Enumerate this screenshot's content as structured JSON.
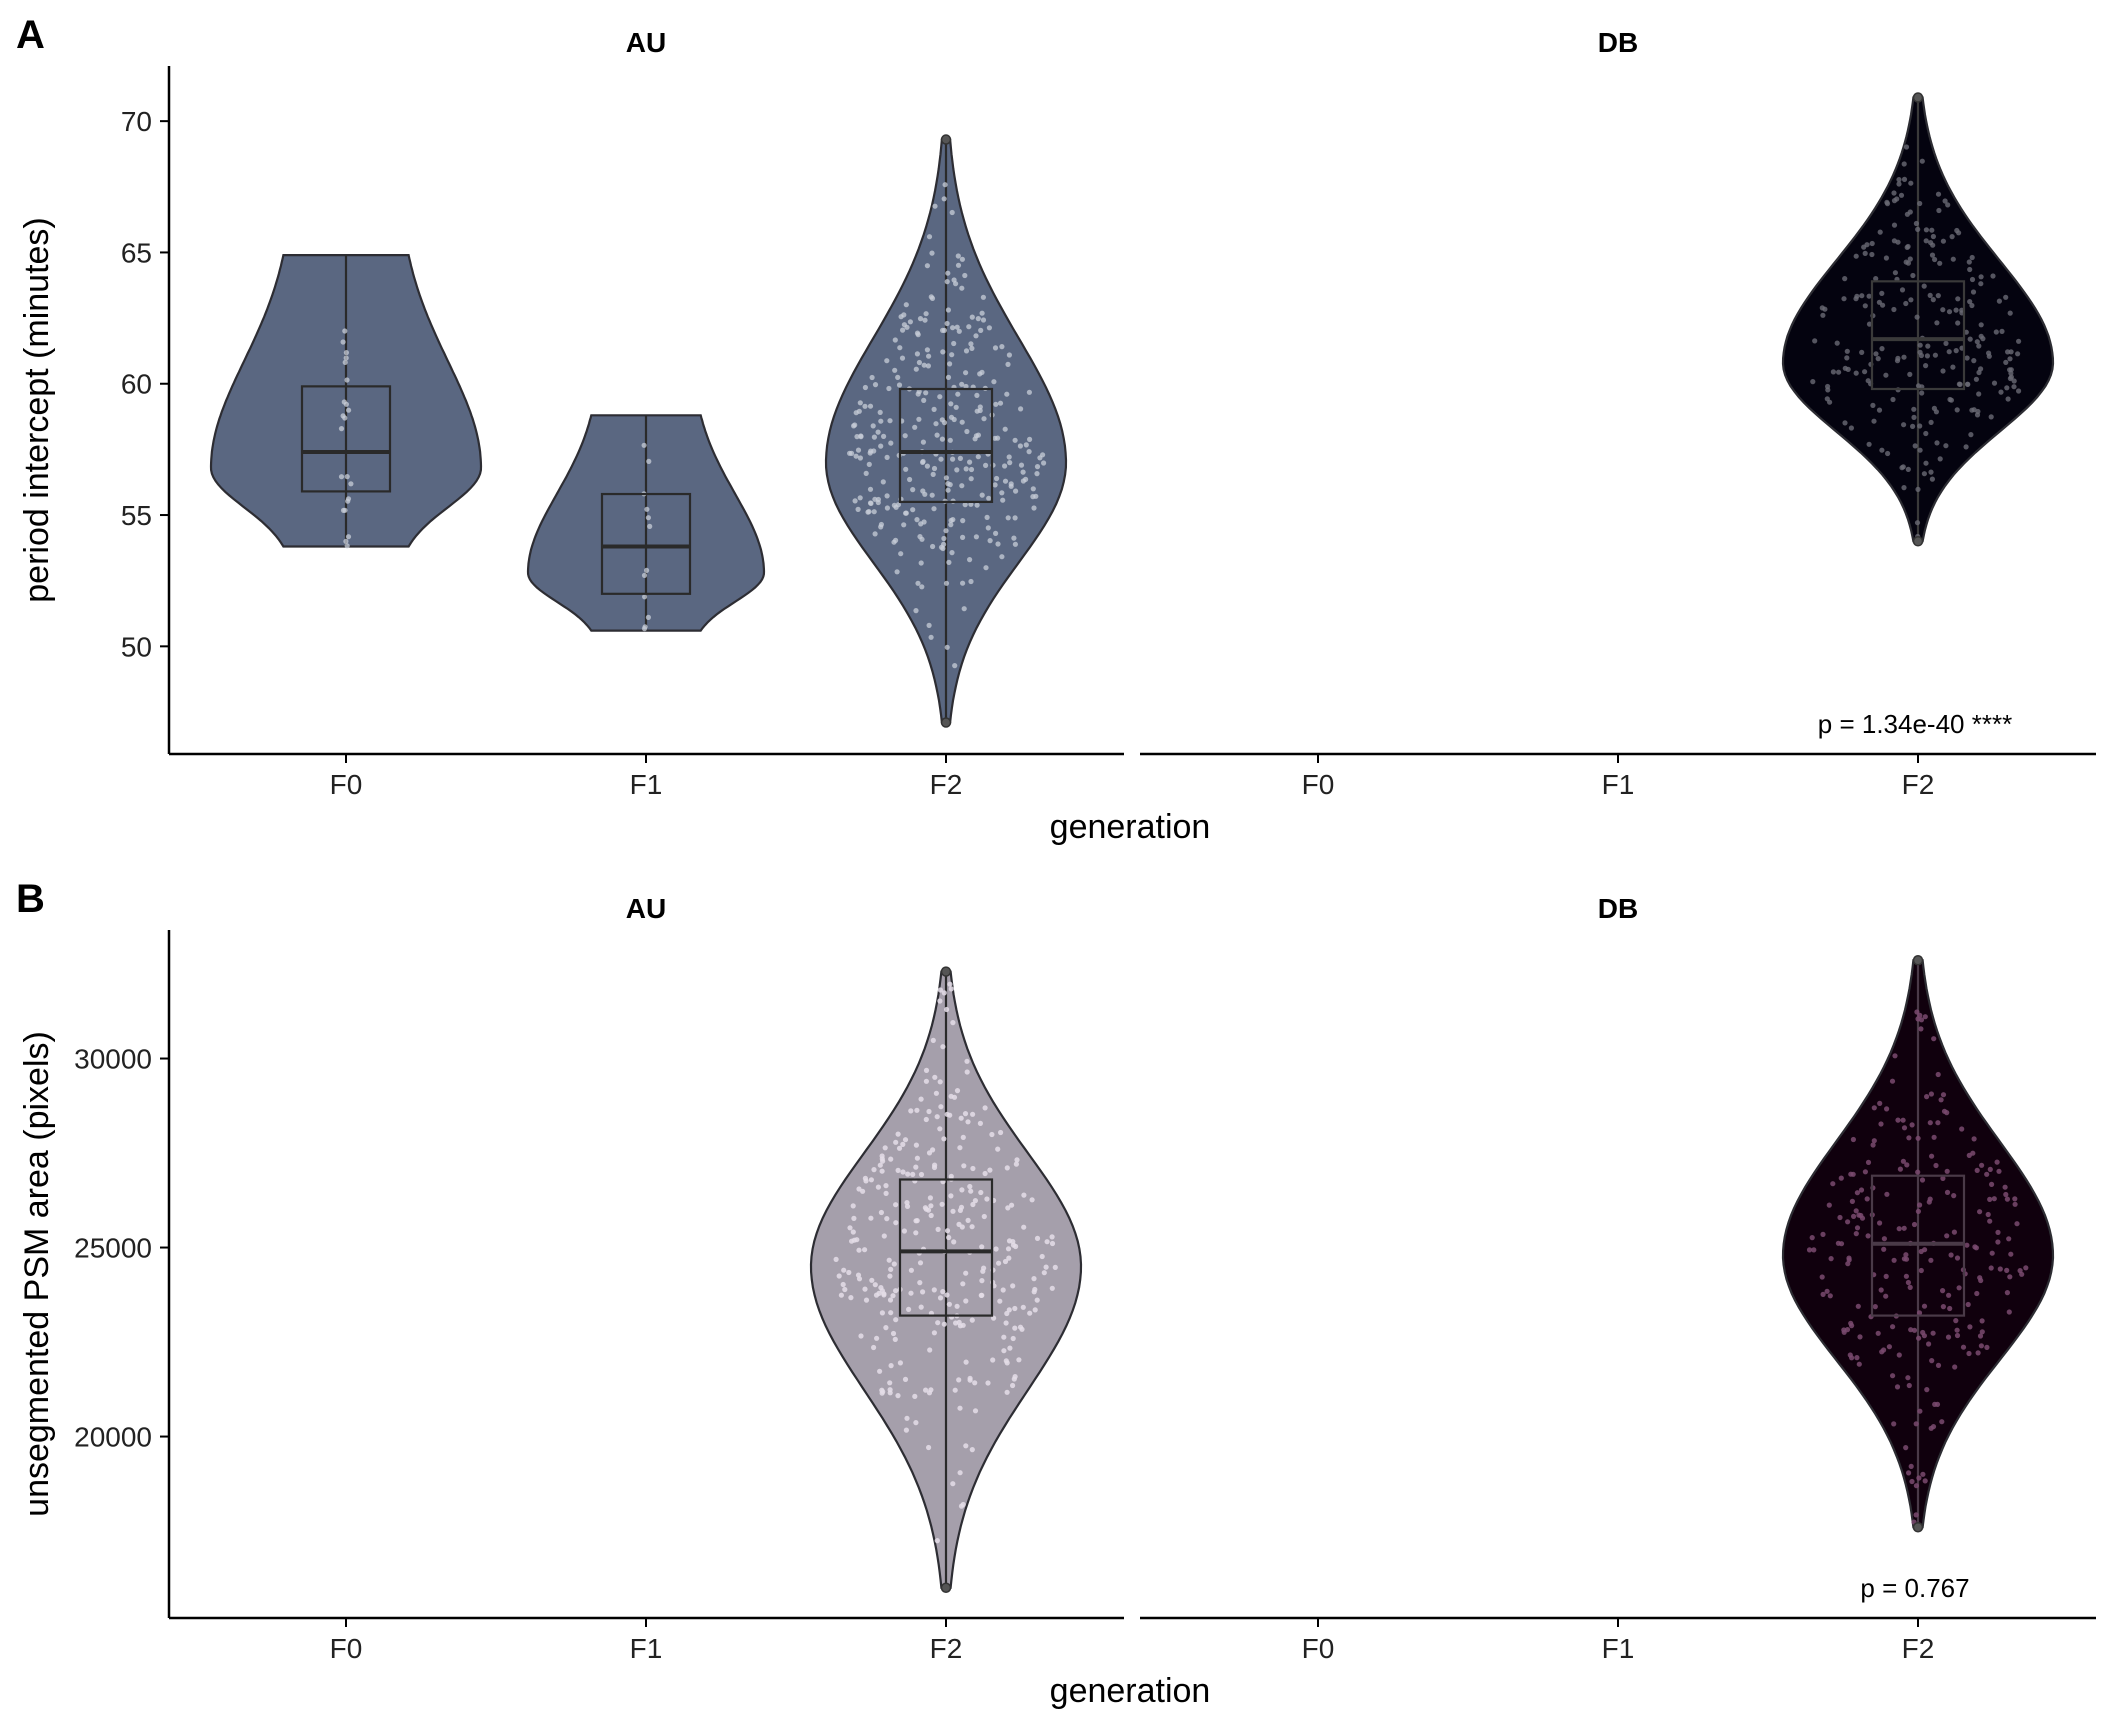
{
  "colors": {
    "au_period": "#5a6781",
    "db_period": "#04030f",
    "au_psm": "#a59fab",
    "db_psm": "#10000d",
    "outline": "#333333",
    "dots_light": "#c8cdd8",
    "dots_db_period": "#6a6a74",
    "dots_db_psm": "#7a4a70"
  },
  "chart_data": [
    {
      "panel": "A",
      "type": "violin",
      "facets": [
        "AU",
        "DB"
      ],
      "categories": [
        "F0",
        "F1",
        "F2"
      ],
      "xlabel": "generation",
      "ylabel": "period intercept (minutes)",
      "yticks": [
        50,
        55,
        60,
        65,
        70
      ],
      "ytick_labels": [
        "50",
        "55",
        "60",
        "65",
        "70"
      ],
      "ylim": [
        45.9,
        72.1
      ],
      "annotation": "p = 1.34e-40 ****",
      "series": [
        {
          "facet": "AU",
          "group": "F0",
          "n": 22,
          "min": 53.8,
          "q1": 55.9,
          "median": 57.4,
          "q3": 59.9,
          "max": 64.9,
          "mode": 56.8
        },
        {
          "facet": "AU",
          "group": "F1",
          "n": 12,
          "min": 50.6,
          "q1": 52.0,
          "median": 53.8,
          "q3": 55.8,
          "max": 58.8,
          "mode": 52.8
        },
        {
          "facet": "AU",
          "group": "F2",
          "n": 300,
          "min": 47.1,
          "q1": 55.5,
          "median": 57.4,
          "q3": 59.8,
          "max": 69.3,
          "mode": 57.0
        },
        {
          "facet": "DB",
          "group": "F2",
          "n": 230,
          "min": 54.0,
          "q1": 59.8,
          "median": 61.7,
          "q3": 63.9,
          "max": 70.9,
          "mode": 60.8
        }
      ]
    },
    {
      "panel": "B",
      "type": "violin",
      "facets": [
        "AU",
        "DB"
      ],
      "categories": [
        "F0",
        "F1",
        "F2"
      ],
      "xlabel": "generation",
      "ylabel": "unsegmented PSM area (pixels)",
      "yticks": [
        20000,
        25000,
        30000
      ],
      "ytick_labels": [
        "20000",
        "25000",
        "30000"
      ],
      "ylim": [
        15200,
        33400
      ],
      "annotation": "p = 0.767",
      "series": [
        {
          "facet": "AU",
          "group": "F2",
          "n": 300,
          "min": 16000,
          "q1": 23200,
          "median": 24900,
          "q3": 26800,
          "max": 32300,
          "mode": 24500
        },
        {
          "facet": "DB",
          "group": "F2",
          "n": 230,
          "min": 17600,
          "q1": 23200,
          "median": 25100,
          "q3": 26900,
          "max": 32600,
          "mode": 24800
        }
      ]
    }
  ]
}
